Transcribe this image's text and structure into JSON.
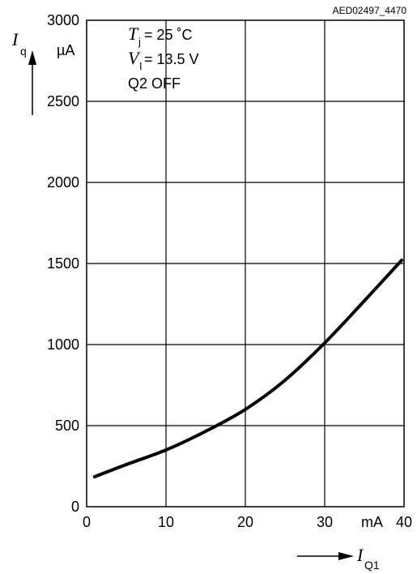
{
  "chart_data": {
    "type": "line",
    "figure_code": "AED02497_4470",
    "xlabel": {
      "symbol": "I",
      "subscript": "Q1"
    },
    "ylabel": {
      "symbol": "I",
      "subscript": "q"
    },
    "x_unit": "mA",
    "y_unit": "µA",
    "xlim": [
      0,
      40
    ],
    "ylim": [
      0,
      3000
    ],
    "x_ticks": [
      "0",
      "10",
      "20",
      "30",
      "40"
    ],
    "y_ticks": [
      "0",
      "500",
      "1000",
      "1500",
      "2000",
      "2500",
      "3000"
    ],
    "grid": true,
    "conditions": {
      "line1": {
        "symbol": "T",
        "subscript": "j",
        "value": " = 25 ˚C"
      },
      "line2": {
        "symbol": "V",
        "subscript": "I",
        "value": " = 13.5 V"
      },
      "line3": "Q2 OFF"
    },
    "series": [
      {
        "x": [
          1,
          5,
          10,
          15,
          20,
          25,
          30,
          35,
          39.7
        ],
        "y": [
          185,
          260,
          350,
          465,
          600,
          780,
          1010,
          1270,
          1520
        ]
      }
    ]
  }
}
